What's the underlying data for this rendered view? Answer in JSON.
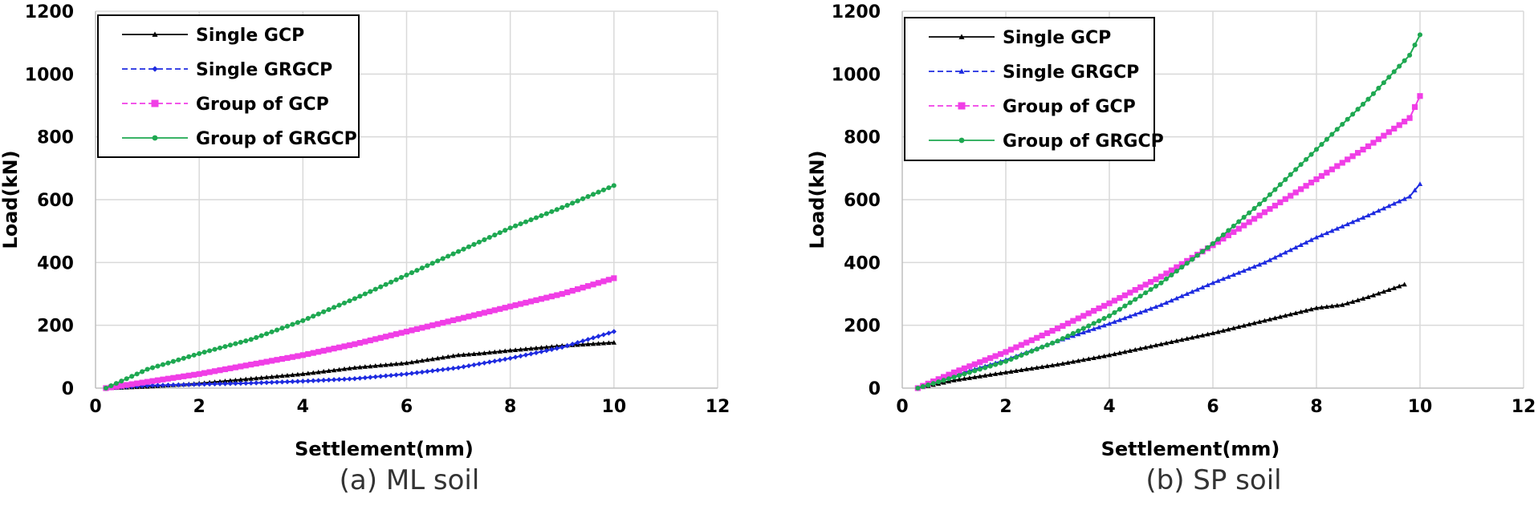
{
  "chart_data": [
    {
      "type": "line",
      "caption": "(a) ML soil",
      "xlabel": "Settlement(mm)",
      "ylabel": "Load(kN)",
      "xlim": [
        0,
        12
      ],
      "ylim": [
        0,
        1200
      ],
      "xticks": [
        0,
        2,
        4,
        6,
        8,
        10,
        12
      ],
      "yticks": [
        0,
        200,
        400,
        600,
        800,
        1000,
        1200
      ],
      "grid": true,
      "legend_position": "top-left",
      "series": [
        {
          "name": "Single GCP",
          "color": "#000000",
          "marker": "triangle",
          "x": [
            0.2,
            1,
            2,
            3,
            4,
            5,
            6,
            7,
            7.4,
            8,
            9,
            10
          ],
          "y": [
            0,
            5,
            15,
            30,
            45,
            65,
            80,
            105,
            110,
            120,
            135,
            145
          ]
        },
        {
          "name": "Single GRGCP",
          "color": "#1e2be0",
          "marker": "diamond",
          "dashed": true,
          "x": [
            0.2,
            1,
            2,
            3,
            4,
            5,
            6,
            7,
            8,
            9,
            10
          ],
          "y": [
            0,
            8,
            12,
            16,
            22,
            30,
            45,
            65,
            95,
            130,
            180
          ]
        },
        {
          "name": "Group of GCP",
          "color": "#f03ee6",
          "marker": "square",
          "dashed": true,
          "x": [
            0.2,
            1,
            2,
            3,
            4,
            5,
            6,
            7,
            8,
            9,
            10
          ],
          "y": [
            0,
            20,
            45,
            75,
            105,
            140,
            180,
            220,
            260,
            300,
            350
          ]
        },
        {
          "name": "Group of GRGCP",
          "color": "#1ea851",
          "marker": "circle",
          "x": [
            0.2,
            1,
            2,
            3,
            4,
            5,
            6,
            7,
            8,
            9,
            10
          ],
          "y": [
            0,
            60,
            110,
            155,
            215,
            285,
            360,
            435,
            510,
            575,
            645
          ]
        }
      ]
    },
    {
      "type": "line",
      "caption": "(b) SP soil",
      "xlabel": "Settlement(mm)",
      "ylabel": "Load(kN)",
      "xlim": [
        0,
        12
      ],
      "ylim": [
        0,
        1200
      ],
      "xticks": [
        0,
        2,
        4,
        6,
        8,
        10,
        12
      ],
      "yticks": [
        0,
        200,
        400,
        600,
        800,
        1000,
        1200
      ],
      "grid": true,
      "legend_position": "top-left",
      "series": [
        {
          "name": "Single GCP",
          "color": "#000000",
          "marker": "triangle",
          "x": [
            0.3,
            1,
            2,
            3,
            4,
            5,
            6,
            7,
            8,
            8.5,
            9,
            9.7
          ],
          "y": [
            0,
            25,
            50,
            75,
            105,
            140,
            175,
            215,
            255,
            265,
            290,
            330
          ]
        },
        {
          "name": "Single GRGCP",
          "color": "#1e2be0",
          "marker": "triangle",
          "dashed": true,
          "x": [
            0.3,
            1,
            2,
            3,
            4,
            5,
            6,
            7,
            8,
            9,
            9.8,
            10
          ],
          "y": [
            0,
            40,
            90,
            150,
            205,
            265,
            335,
            400,
            480,
            550,
            610,
            650
          ]
        },
        {
          "name": "Group of GCP",
          "color": "#f03ee6",
          "marker": "square",
          "dashed": true,
          "x": [
            0.3,
            1,
            2,
            3,
            4,
            5,
            6,
            7,
            8,
            9,
            9.8,
            10
          ],
          "y": [
            0,
            50,
            115,
            190,
            270,
            355,
            455,
            560,
            665,
            770,
            860,
            930
          ]
        },
        {
          "name": "Group of GRGCP",
          "color": "#1ea851",
          "marker": "circle",
          "x": [
            0.3,
            1,
            2,
            3,
            4,
            5,
            6,
            7,
            8,
            9,
            9.8,
            10
          ],
          "y": [
            0,
            35,
            85,
            150,
            230,
            335,
            460,
            600,
            760,
            920,
            1060,
            1125
          ]
        }
      ]
    }
  ]
}
